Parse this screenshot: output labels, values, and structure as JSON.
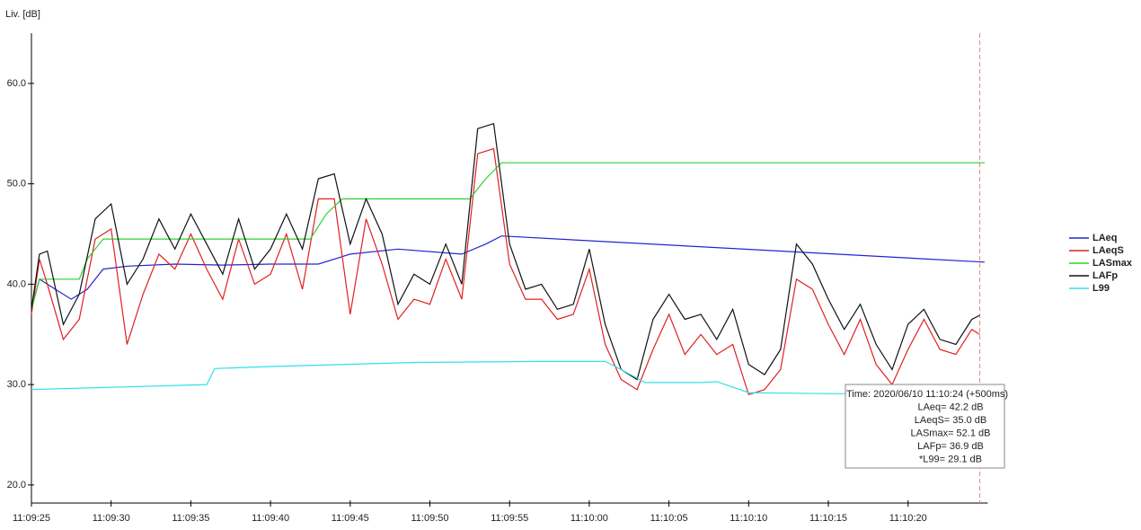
{
  "chart_data": {
    "type": "line",
    "y_label": "Liv. [dB]",
    "ylim": [
      18.2,
      65
    ],
    "yticks": [
      {
        "value": 20,
        "label": "20.0"
      },
      {
        "value": 30,
        "label": "30.0"
      },
      {
        "value": 40,
        "label": "40.0"
      },
      {
        "value": 50,
        "label": "50.0"
      },
      {
        "value": 60,
        "label": "60.0"
      }
    ],
    "xlim": [
      0,
      60
    ],
    "xticks": [
      {
        "value": 0,
        "label": "11:09:25"
      },
      {
        "value": 5,
        "label": "11:09:30"
      },
      {
        "value": 10,
        "label": "11:09:35"
      },
      {
        "value": 15,
        "label": "11:09:40"
      },
      {
        "value": 20,
        "label": "11:09:45"
      },
      {
        "value": 25,
        "label": "11:09:50"
      },
      {
        "value": 30,
        "label": "11:09:55"
      },
      {
        "value": 35,
        "label": "11:10:00"
      },
      {
        "value": 40,
        "label": "11:10:05"
      },
      {
        "value": 45,
        "label": "11:10:10"
      },
      {
        "value": 50,
        "label": "11:10:15"
      },
      {
        "value": 55,
        "label": "11:10:20"
      }
    ],
    "legend": "right",
    "cursor_x": 59.5,
    "cursor_color": "#f08080",
    "series": [
      {
        "name": "LAeq",
        "color": "#2424d0",
        "x": [
          0,
          0.5,
          1.5,
          2.5,
          3.5,
          4.5,
          6,
          9,
          12,
          15,
          18,
          20,
          23,
          27,
          28.5,
          29.5,
          59.8
        ],
        "values": [
          37.5,
          40.5,
          39.5,
          38.5,
          39.5,
          41.5,
          41.8,
          42,
          41.9,
          42,
          42,
          43,
          43.5,
          43,
          44,
          44.8,
          42.2
        ]
      },
      {
        "name": "LAeqS",
        "color": "#e02020",
        "x": [
          0,
          0.5,
          1,
          2,
          3,
          4,
          5,
          6,
          7,
          8,
          9,
          10,
          11,
          12,
          13,
          14,
          15,
          16,
          17,
          18,
          19,
          20,
          21,
          22,
          23,
          24,
          25,
          26,
          27,
          28,
          29,
          30,
          31,
          32,
          33,
          34,
          35,
          36,
          37,
          38,
          39,
          40,
          41,
          42,
          43,
          44,
          45,
          46,
          47,
          48,
          49,
          50,
          51,
          52,
          53,
          54,
          55,
          56,
          57,
          58,
          59,
          59.5
        ],
        "values": [
          37,
          42.5,
          40,
          34.5,
          36.5,
          44.5,
          45.5,
          34,
          39,
          43,
          41.5,
          45,
          41.5,
          38.5,
          44.5,
          40,
          41,
          45,
          39.5,
          48.5,
          48.5,
          37,
          46.5,
          42,
          36.5,
          38.5,
          38,
          42.5,
          38.5,
          53,
          53.5,
          42,
          38.5,
          38.5,
          36.5,
          37,
          41.5,
          34,
          30.5,
          29.5,
          33.5,
          37,
          33,
          35,
          33,
          34,
          29,
          29.5,
          31.5,
          40.5,
          39.5,
          36,
          33,
          36.5,
          32,
          30,
          33.5,
          36.5,
          33.5,
          33,
          35.5,
          35.0
        ]
      },
      {
        "name": "LASmax",
        "color": "#30d030",
        "x": [
          0,
          0.5,
          3,
          3.5,
          4.5,
          17.5,
          18.5,
          19.5,
          27.5,
          28.5,
          29.5,
          59.8
        ],
        "values": [
          37.5,
          40.5,
          40.5,
          42.5,
          44.5,
          44.5,
          47,
          48.5,
          48.5,
          50.5,
          52.1,
          52.1
        ]
      },
      {
        "name": "LAFp",
        "color": "#111111",
        "x": [
          0,
          0.5,
          1,
          2,
          3,
          4,
          5,
          6,
          7,
          8,
          9,
          10,
          11,
          12,
          13,
          14,
          15,
          16,
          17,
          18,
          19,
          20,
          21,
          22,
          23,
          24,
          25,
          26,
          27,
          28,
          29,
          30,
          31,
          32,
          33,
          34,
          35,
          36,
          37,
          38,
          39,
          40,
          41,
          42,
          43,
          44,
          45,
          46,
          47,
          48,
          49,
          50,
          51,
          52,
          53,
          54,
          55,
          56,
          57,
          58,
          59,
          59.5
        ],
        "values": [
          37.5,
          43,
          43.3,
          36,
          39,
          46.5,
          48,
          40,
          42.5,
          46.5,
          43.5,
          47,
          44,
          41,
          46.5,
          41.5,
          43.5,
          47,
          43.5,
          50.5,
          51,
          44,
          48.5,
          45,
          38,
          41,
          40,
          44,
          40,
          55.5,
          56,
          44,
          39.5,
          40,
          37.5,
          38,
          43.5,
          36,
          31.5,
          30.5,
          36.5,
          39,
          36.5,
          37,
          34.5,
          37.5,
          32,
          31,
          33.5,
          44,
          42,
          38.5,
          35.5,
          38,
          34,
          31.5,
          36,
          37.5,
          34.5,
          34,
          36.5,
          36.9
        ]
      },
      {
        "name": "L99",
        "color": "#30e0e8",
        "x": [
          0,
          11,
          11.5,
          15,
          24,
          32,
          36,
          37,
          38.5,
          42,
          43,
          45,
          50,
          59.8
        ],
        "values": [
          29.5,
          30,
          31.6,
          31.8,
          32.2,
          32.3,
          32.3,
          31.5,
          30.2,
          30.2,
          30.3,
          29.2,
          29.1,
          29.1
        ]
      }
    ],
    "tooltip": [
      "Time: 2020/06/10 11:10:24  (+500ms)",
      "LAeq= 42.2 dB",
      "LAeqS= 35.0 dB",
      "LASmax= 52.1 dB",
      "LAFp= 36.9 dB",
      "*L99= 29.1 dB"
    ]
  }
}
